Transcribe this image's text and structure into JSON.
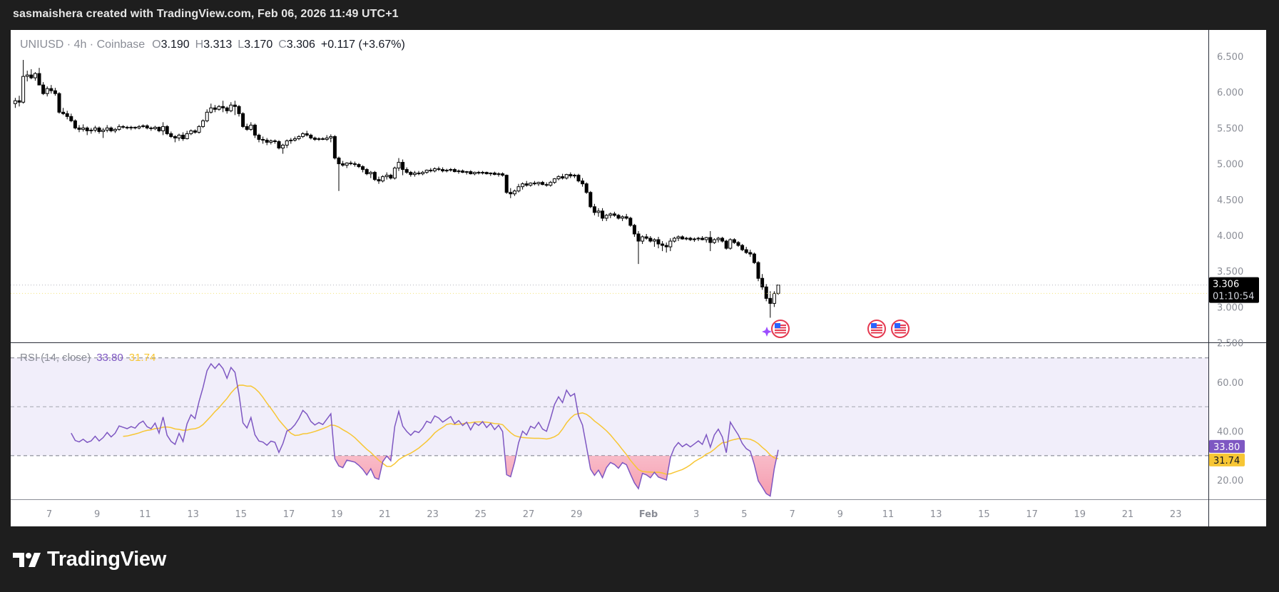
{
  "header": {
    "title": "sasmaishera created with TradingView.com, Feb 06, 2026 11:49 UTC+1"
  },
  "legend": {
    "symbol": "UNIUSD · 4h · Coinbase",
    "open_label": "O",
    "open": "3.190",
    "high_label": "H",
    "high": "3.313",
    "low_label": "L",
    "low": "3.170",
    "close_label": "C",
    "close": "3.306",
    "change": "+0.117 (+3.67%)"
  },
  "rsi_legend": {
    "title": "RSI (14, close)",
    "rsi": "33.80",
    "ma": "31.74"
  },
  "price_axis": {
    "ticks": [
      "6.500",
      "6.000",
      "5.500",
      "5.000",
      "4.500",
      "4.000",
      "3.500",
      "3.000",
      "2.500"
    ]
  },
  "price_label": {
    "price": "3.306",
    "countdown": "01:10:54"
  },
  "rsi_axis": {
    "ticks": [
      "60.00",
      "40.00",
      "20.00"
    ],
    "rsi_label": "33.80",
    "ma_label": "31.74"
  },
  "time_axis": {
    "ticks": [
      "7",
      "9",
      "11",
      "13",
      "15",
      "17",
      "19",
      "21",
      "23",
      "25",
      "27",
      "29",
      "Feb",
      "3",
      "5",
      "7",
      "9",
      "11",
      "13",
      "15",
      "17",
      "19",
      "21",
      "23"
    ]
  },
  "branding": {
    "logo_text": "TradingView"
  },
  "colors": {
    "rsi": "#7e57c2",
    "rsi_ma": "#f7c634",
    "band": "#f1eefa",
    "oversold_fill": "#f8bcc8",
    "candle": "#000000"
  },
  "events": [
    {
      "icon": "us-flag-icon"
    },
    {
      "icon": "us-flag-icon"
    },
    {
      "icon": "us-flag-icon"
    }
  ],
  "chart_data": {
    "type": "candlestick",
    "symbol": "UNIUSD",
    "interval": "4h",
    "exchange": "Coinbase",
    "first_bar": "2026-01-05T12:00",
    "ylim": [
      2.5,
      6.5
    ],
    "last_price": 3.306,
    "candles_ohlc": [
      [
        5.84,
        5.92,
        5.78,
        5.88
      ],
      [
        5.88,
        5.95,
        5.8,
        5.86
      ],
      [
        5.86,
        6.45,
        5.84,
        6.22
      ],
      [
        6.22,
        6.3,
        6.15,
        6.24
      ],
      [
        6.24,
        6.32,
        6.18,
        6.2
      ],
      [
        6.2,
        6.28,
        6.16,
        6.26
      ],
      [
        6.26,
        6.34,
        6.12,
        6.1
      ],
      [
        6.1,
        6.14,
        5.96,
        5.98
      ],
      [
        5.98,
        6.08,
        5.94,
        6.05
      ],
      [
        6.05,
        6.1,
        5.98,
        6.02
      ],
      [
        6.02,
        6.06,
        5.95,
        5.98
      ],
      [
        5.98,
        6.0,
        5.7,
        5.72
      ],
      [
        5.72,
        5.78,
        5.68,
        5.7
      ],
      [
        5.7,
        5.74,
        5.62,
        5.66
      ],
      [
        5.66,
        5.7,
        5.58,
        5.6
      ],
      [
        5.6,
        5.62,
        5.48,
        5.5
      ],
      [
        5.5,
        5.54,
        5.44,
        5.48
      ],
      [
        5.48,
        5.55,
        5.45,
        5.5
      ],
      [
        5.5,
        5.52,
        5.4,
        5.46
      ],
      [
        5.46,
        5.5,
        5.42,
        5.47
      ],
      [
        5.47,
        5.53,
        5.44,
        5.5
      ],
      [
        5.5,
        5.52,
        5.42,
        5.45
      ],
      [
        5.45,
        5.5,
        5.36,
        5.47
      ],
      [
        5.47,
        5.54,
        5.44,
        5.5
      ],
      [
        5.5,
        5.52,
        5.44,
        5.46
      ],
      [
        5.46,
        5.5,
        5.43,
        5.48
      ],
      [
        5.48,
        5.55,
        5.46,
        5.52
      ],
      [
        5.52,
        5.54,
        5.49,
        5.51
      ],
      [
        5.51,
        5.53,
        5.48,
        5.5
      ],
      [
        5.5,
        5.53,
        5.47,
        5.51
      ],
      [
        5.51,
        5.52,
        5.48,
        5.5
      ],
      [
        5.5,
        5.54,
        5.48,
        5.52
      ],
      [
        5.52,
        5.55,
        5.5,
        5.53
      ],
      [
        5.53,
        5.55,
        5.48,
        5.5
      ],
      [
        5.5,
        5.52,
        5.46,
        5.49
      ],
      [
        5.49,
        5.53,
        5.47,
        5.51
      ],
      [
        5.51,
        5.52,
        5.44,
        5.46
      ],
      [
        5.46,
        5.58,
        5.4,
        5.52
      ],
      [
        5.52,
        5.54,
        5.4,
        5.42
      ],
      [
        5.42,
        5.45,
        5.36,
        5.38
      ],
      [
        5.38,
        5.4,
        5.3,
        5.36
      ],
      [
        5.36,
        5.42,
        5.32,
        5.4
      ],
      [
        5.4,
        5.44,
        5.32,
        5.35
      ],
      [
        5.35,
        5.46,
        5.34,
        5.42
      ],
      [
        5.42,
        5.48,
        5.4,
        5.46
      ],
      [
        5.46,
        5.48,
        5.42,
        5.44
      ],
      [
        5.44,
        5.54,
        5.42,
        5.52
      ],
      [
        5.52,
        5.62,
        5.5,
        5.6
      ],
      [
        5.6,
        5.76,
        5.58,
        5.72
      ],
      [
        5.72,
        5.84,
        5.7,
        5.78
      ],
      [
        5.78,
        5.82,
        5.72,
        5.76
      ],
      [
        5.76,
        5.82,
        5.74,
        5.8
      ],
      [
        5.8,
        5.88,
        5.72,
        5.78
      ],
      [
        5.78,
        5.8,
        5.7,
        5.74
      ],
      [
        5.74,
        5.86,
        5.72,
        5.82
      ],
      [
        5.82,
        5.88,
        5.68,
        5.8
      ],
      [
        5.8,
        5.82,
        5.66,
        5.7
      ],
      [
        5.7,
        5.72,
        5.5,
        5.52
      ],
      [
        5.52,
        5.56,
        5.46,
        5.48
      ],
      [
        5.48,
        5.58,
        5.46,
        5.54
      ],
      [
        5.54,
        5.56,
        5.36,
        5.4
      ],
      [
        5.4,
        5.42,
        5.3,
        5.34
      ],
      [
        5.34,
        5.38,
        5.28,
        5.33
      ],
      [
        5.33,
        5.36,
        5.26,
        5.3
      ],
      [
        5.3,
        5.34,
        5.27,
        5.32
      ],
      [
        5.32,
        5.34,
        5.28,
        5.31
      ],
      [
        5.31,
        5.33,
        5.2,
        5.22
      ],
      [
        5.22,
        5.28,
        5.14,
        5.26
      ],
      [
        5.26,
        5.34,
        5.22,
        5.32
      ],
      [
        5.32,
        5.36,
        5.28,
        5.33
      ],
      [
        5.33,
        5.38,
        5.31,
        5.35
      ],
      [
        5.35,
        5.4,
        5.33,
        5.38
      ],
      [
        5.38,
        5.44,
        5.36,
        5.42
      ],
      [
        5.42,
        5.46,
        5.38,
        5.4
      ],
      [
        5.4,
        5.42,
        5.34,
        5.36
      ],
      [
        5.36,
        5.38,
        5.32,
        5.34
      ],
      [
        5.34,
        5.37,
        5.32,
        5.35
      ],
      [
        5.35,
        5.37,
        5.33,
        5.34
      ],
      [
        5.34,
        5.4,
        5.32,
        5.36
      ],
      [
        5.36,
        5.41,
        5.3,
        5.38
      ],
      [
        5.38,
        5.4,
        5.06,
        5.08
      ],
      [
        5.08,
        5.1,
        4.62,
        5.0
      ],
      [
        5.0,
        5.04,
        4.96,
        4.98
      ],
      [
        4.98,
        5.02,
        4.94,
        5.01
      ],
      [
        5.01,
        5.04,
        4.98,
        5.0
      ],
      [
        5.0,
        5.03,
        4.96,
        4.99
      ],
      [
        4.99,
        5.01,
        4.94,
        4.96
      ],
      [
        4.96,
        4.98,
        4.88,
        4.92
      ],
      [
        4.92,
        4.94,
        4.84,
        4.86
      ],
      [
        4.86,
        4.9,
        4.8,
        4.88
      ],
      [
        4.88,
        4.9,
        4.76,
        4.78
      ],
      [
        4.78,
        4.82,
        4.72,
        4.76
      ],
      [
        4.76,
        4.84,
        4.74,
        4.82
      ],
      [
        4.82,
        4.88,
        4.78,
        4.84
      ],
      [
        4.84,
        4.86,
        4.78,
        4.8
      ],
      [
        4.8,
        4.96,
        4.78,
        4.94
      ],
      [
        4.94,
        5.08,
        4.9,
        5.02
      ],
      [
        5.02,
        5.06,
        4.84,
        4.92
      ],
      [
        4.92,
        4.95,
        4.86,
        4.88
      ],
      [
        4.88,
        4.9,
        4.82,
        4.85
      ],
      [
        4.85,
        4.9,
        4.82,
        4.87
      ],
      [
        4.87,
        4.9,
        4.84,
        4.86
      ],
      [
        4.86,
        4.9,
        4.84,
        4.88
      ],
      [
        4.88,
        4.92,
        4.86,
        4.91
      ],
      [
        4.91,
        4.94,
        4.88,
        4.9
      ],
      [
        4.9,
        4.95,
        4.88,
        4.93
      ],
      [
        4.93,
        4.96,
        4.9,
        4.92
      ],
      [
        4.92,
        4.95,
        4.88,
        4.9
      ],
      [
        4.9,
        4.93,
        4.88,
        4.91
      ],
      [
        4.91,
        4.94,
        4.89,
        4.92
      ],
      [
        4.92,
        4.94,
        4.88,
        4.89
      ],
      [
        4.89,
        4.92,
        4.86,
        4.9
      ],
      [
        4.9,
        4.92,
        4.87,
        4.88
      ],
      [
        4.88,
        4.9,
        4.85,
        4.89
      ],
      [
        4.89,
        4.91,
        4.85,
        4.86
      ],
      [
        4.86,
        4.89,
        4.84,
        4.88
      ],
      [
        4.88,
        4.9,
        4.85,
        4.87
      ],
      [
        4.87,
        4.9,
        4.85,
        4.88
      ],
      [
        4.88,
        4.89,
        4.85,
        4.86
      ],
      [
        4.86,
        4.88,
        4.83,
        4.87
      ],
      [
        4.87,
        4.89,
        4.84,
        4.85
      ],
      [
        4.85,
        4.88,
        4.82,
        4.86
      ],
      [
        4.86,
        4.88,
        4.82,
        4.84
      ],
      [
        4.84,
        4.85,
        4.58,
        4.6
      ],
      [
        4.6,
        4.66,
        4.52,
        4.58
      ],
      [
        4.58,
        4.64,
        4.55,
        4.62
      ],
      [
        4.62,
        4.72,
        4.6,
        4.68
      ],
      [
        4.68,
        4.74,
        4.64,
        4.72
      ],
      [
        4.72,
        4.76,
        4.68,
        4.7
      ],
      [
        4.7,
        4.74,
        4.68,
        4.73
      ],
      [
        4.73,
        4.76,
        4.7,
        4.72
      ],
      [
        4.72,
        4.75,
        4.69,
        4.74
      ],
      [
        4.74,
        4.76,
        4.7,
        4.71
      ],
      [
        4.71,
        4.74,
        4.68,
        4.7
      ],
      [
        4.7,
        4.76,
        4.68,
        4.74
      ],
      [
        4.74,
        4.8,
        4.72,
        4.79
      ],
      [
        4.79,
        4.84,
        4.77,
        4.82
      ],
      [
        4.82,
        4.86,
        4.78,
        4.8
      ],
      [
        4.8,
        4.86,
        4.78,
        4.85
      ],
      [
        4.85,
        4.88,
        4.8,
        4.83
      ],
      [
        4.83,
        4.86,
        4.8,
        4.84
      ],
      [
        4.84,
        4.86,
        4.74,
        4.76
      ],
      [
        4.76,
        4.8,
        4.68,
        4.72
      ],
      [
        4.72,
        4.74,
        4.58,
        4.6
      ],
      [
        4.6,
        4.62,
        4.38,
        4.4
      ],
      [
        4.4,
        4.44,
        4.28,
        4.32
      ],
      [
        4.32,
        4.38,
        4.26,
        4.34
      ],
      [
        4.34,
        4.38,
        4.2,
        4.24
      ],
      [
        4.24,
        4.3,
        4.2,
        4.28
      ],
      [
        4.28,
        4.32,
        4.24,
        4.3
      ],
      [
        4.3,
        4.33,
        4.26,
        4.28
      ],
      [
        4.28,
        4.3,
        4.22,
        4.24
      ],
      [
        4.24,
        4.28,
        4.2,
        4.26
      ],
      [
        4.26,
        4.3,
        4.22,
        4.24
      ],
      [
        4.24,
        4.26,
        4.12,
        4.14
      ],
      [
        4.14,
        4.16,
        3.98,
        4.02
      ],
      [
        4.02,
        4.06,
        3.6,
        3.92
      ],
      [
        3.92,
        4.0,
        3.88,
        3.98
      ],
      [
        3.98,
        4.02,
        3.94,
        3.96
      ],
      [
        3.96,
        3.99,
        3.9,
        3.92
      ],
      [
        3.92,
        3.96,
        3.84,
        3.94
      ],
      [
        3.94,
        3.98,
        3.82,
        3.88
      ],
      [
        3.88,
        3.92,
        3.78,
        3.86
      ],
      [
        3.86,
        3.9,
        3.76,
        3.84
      ],
      [
        3.84,
        3.96,
        3.78,
        3.92
      ],
      [
        3.92,
        3.98,
        3.9,
        3.96
      ],
      [
        3.96,
        4.0,
        3.92,
        3.98
      ],
      [
        3.98,
        4.0,
        3.94,
        3.95
      ],
      [
        3.95,
        3.98,
        3.93,
        3.96
      ],
      [
        3.96,
        3.98,
        3.92,
        3.94
      ],
      [
        3.94,
        3.97,
        3.91,
        3.95
      ],
      [
        3.95,
        3.98,
        3.92,
        3.96
      ],
      [
        3.96,
        3.99,
        3.93,
        3.94
      ],
      [
        3.94,
        3.98,
        3.9,
        3.97
      ],
      [
        3.97,
        4.06,
        3.78,
        3.9
      ],
      [
        3.9,
        3.96,
        3.88,
        3.94
      ],
      [
        3.94,
        3.98,
        3.9,
        3.96
      ],
      [
        3.96,
        3.98,
        3.9,
        3.92
      ],
      [
        3.92,
        3.94,
        3.8,
        3.82
      ],
      [
        3.82,
        3.96,
        3.8,
        3.94
      ],
      [
        3.94,
        3.96,
        3.88,
        3.9
      ],
      [
        3.9,
        3.92,
        3.84,
        3.86
      ],
      [
        3.86,
        3.88,
        3.78,
        3.8
      ],
      [
        3.8,
        3.84,
        3.74,
        3.76
      ],
      [
        3.76,
        3.8,
        3.7,
        3.74
      ],
      [
        3.74,
        3.76,
        3.6,
        3.62
      ],
      [
        3.62,
        3.64,
        3.36,
        3.4
      ],
      [
        3.4,
        3.46,
        3.24,
        3.28
      ],
      [
        3.28,
        3.32,
        3.08,
        3.12
      ],
      [
        3.12,
        3.22,
        2.85,
        3.05
      ],
      [
        3.05,
        3.22,
        3.0,
        3.19
      ],
      [
        3.19,
        3.313,
        3.17,
        3.306
      ]
    ],
    "indicator": {
      "name": "RSI",
      "length": 14,
      "source": "close",
      "ma_length": 14,
      "upper": 70,
      "middle": 50,
      "lower": 30,
      "ylim": [
        12,
        84
      ],
      "last_rsi": 33.8,
      "last_ma": 31.74
    }
  }
}
